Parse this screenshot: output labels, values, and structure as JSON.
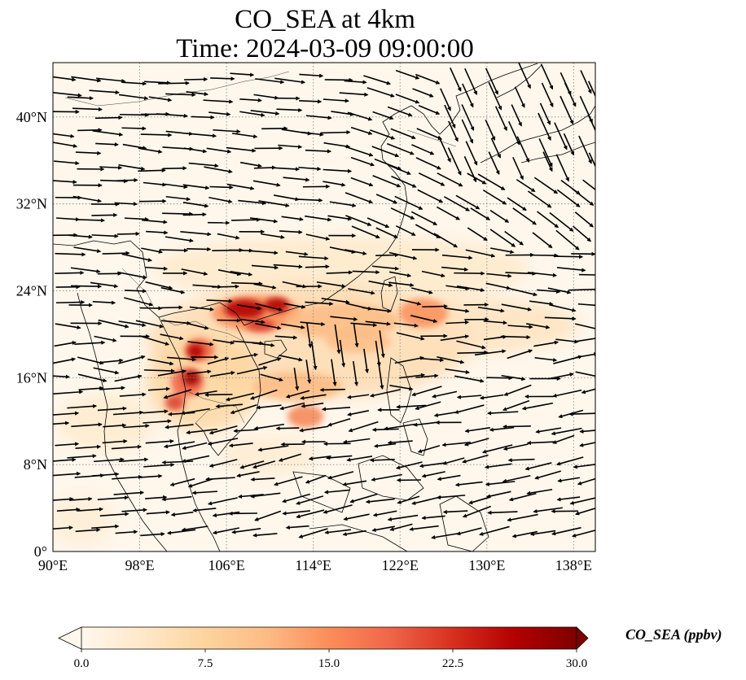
{
  "title": {
    "line1": "CO_SEA at 4km",
    "line2": "Time: 2024-03-09 09:00:00"
  },
  "map": {
    "projection": "PlateCarree",
    "lon_range": [
      90,
      140
    ],
    "lat_range": [
      0,
      45
    ],
    "gridlines": "dotted",
    "lon_ticks": [
      {
        "value": 90,
        "label": "90°E"
      },
      {
        "value": 98,
        "label": "98°E"
      },
      {
        "value": 106,
        "label": "106°E"
      },
      {
        "value": 114,
        "label": "114°E"
      },
      {
        "value": 122,
        "label": "122°E"
      },
      {
        "value": 130,
        "label": "130°E"
      },
      {
        "value": 138,
        "label": "138°E"
      }
    ],
    "lat_ticks": [
      {
        "value": 0,
        "label": "0°"
      },
      {
        "value": 8,
        "label": "8°N"
      },
      {
        "value": 16,
        "label": "16°N"
      },
      {
        "value": 24,
        "label": "24°N"
      },
      {
        "value": 32,
        "label": "32°N"
      },
      {
        "value": 40,
        "label": "40°N"
      }
    ],
    "wind_vectors": "quiver arrows, westerly flow north of 20°N, easterly flow south of 16°N"
  },
  "colorbar": {
    "label": "CO_SEA (ppbv)",
    "cmap": "OrRd",
    "min": 0.0,
    "max": 30.0,
    "extend": "both",
    "ticks": [
      "0.0",
      "7.5",
      "15.0",
      "22.5",
      "30.0"
    ],
    "colors": [
      "#fff7ec",
      "#fee8c8",
      "#fdd49e",
      "#fdbb84",
      "#fc8d59",
      "#ef6548",
      "#d7301f",
      "#b30000",
      "#7f0000"
    ]
  }
}
